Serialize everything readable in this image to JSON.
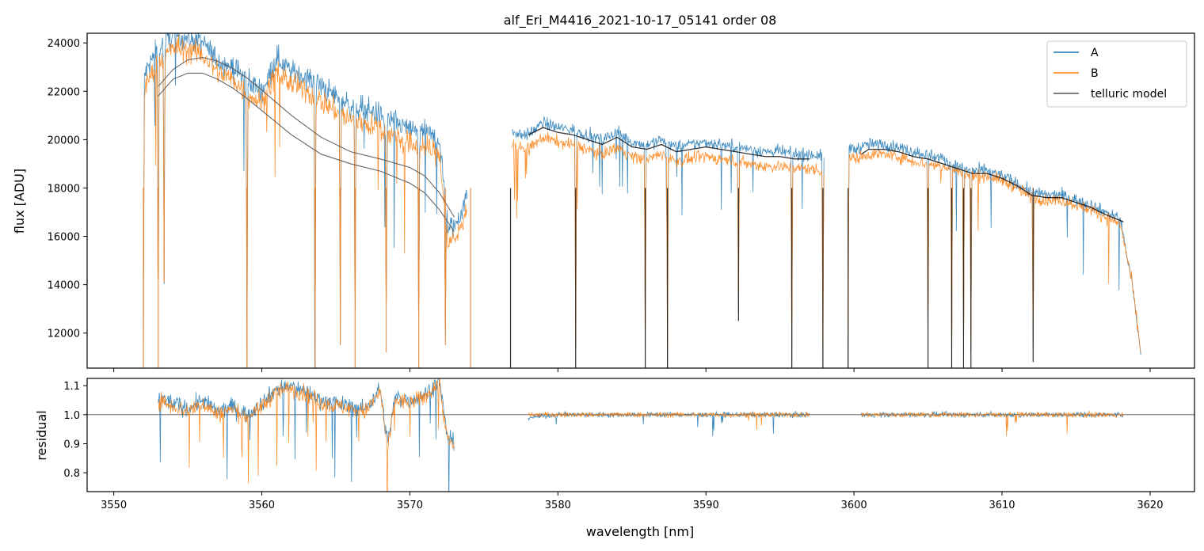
{
  "chart_data": [
    {
      "id": "flux-panel",
      "type": "line",
      "title": "alf_Eri_M4416_2021-10-17_05141  order 08",
      "xlabel": "",
      "ylabel": "flux [ADU]",
      "xlim": [
        3548.2,
        3623
      ],
      "ylim": [
        10550,
        24400
      ],
      "yticks": [
        12000,
        14000,
        16000,
        18000,
        20000,
        22000,
        24000
      ],
      "yticklabels": [
        "12000",
        "14000",
        "16000",
        "18000",
        "20000",
        "22000",
        "24000"
      ],
      "xticks": [
        3550,
        3560,
        3570,
        3580,
        3590,
        3600,
        3610,
        3620
      ],
      "legend": {
        "position": "top-right",
        "entries": [
          "A",
          "B",
          "telluric model"
        ]
      },
      "series": [
        {
          "name": "A",
          "color": "#1f77b4",
          "segments": [
            {
              "x": [
                3552.0,
                3553.0,
                3554.0,
                3555.0,
                3556.0,
                3557.0,
                3558.0,
                3559.0,
                3560.0,
                3561.0,
                3562.0,
                3563.0,
                3564.0,
                3565.0,
                3566.0,
                3567.0,
                3568.0,
                3569.0,
                3570.0,
                3571.0,
                3572.0,
                3572.6,
                3573.2,
                3573.9
              ],
              "y": [
                22600,
                23800,
                24300,
                24200,
                24000,
                23300,
                23000,
                22500,
                22000,
                23400,
                22800,
                22600,
                22200,
                21800,
                21400,
                21300,
                21000,
                20700,
                20400,
                20300,
                20000,
                16200,
                16600,
                17800
              ]
            },
            {
              "x": [
                3576.9,
                3578.0,
                3579.0,
                3580.0,
                3581.0,
                3582.0,
                3583.0,
                3584.0,
                3585.0,
                3586.0,
                3587.0,
                3588.0,
                3589.0,
                3590.0,
                3591.0,
                3592.0,
                3593.0,
                3594.0,
                3595.0,
                3596.0,
                3597.0,
                3598.0
              ],
              "y": [
                20300,
                20200,
                20700,
                20500,
                20400,
                20200,
                20000,
                20300,
                19900,
                19800,
                20000,
                19700,
                19800,
                19900,
                19800,
                19700,
                19600,
                19500,
                19500,
                19400,
                19400,
                19300
              ]
            },
            {
              "x": [
                3599.6,
                3600.0,
                3601.0,
                3602.0,
                3603.0,
                3604.0,
                3605.0,
                3606.0,
                3607.0,
                3608.0,
                3609.0,
                3610.0,
                3611.0,
                3612.0,
                3613.0,
                3614.0,
                3615.0,
                3616.0,
                3617.0,
                3618.0,
                3618.8,
                3619.4
              ],
              "y": [
                19700,
                19600,
                19800,
                19800,
                19700,
                19500,
                19400,
                19200,
                18900,
                18700,
                18700,
                18500,
                18200,
                17800,
                17700,
                17700,
                17500,
                17300,
                17000,
                16700,
                14000,
                11000
              ]
            }
          ]
        },
        {
          "name": "B",
          "color": "#ff7f0e",
          "segments": [
            {
              "x": [
                3552.0,
                3553.0,
                3554.0,
                3555.0,
                3556.0,
                3557.0,
                3558.0,
                3559.0,
                3560.0,
                3561.0,
                3562.0,
                3563.0,
                3564.0,
                3565.0,
                3566.0,
                3567.0,
                3568.0,
                3569.0,
                3570.0,
                3571.0,
                3572.0,
                3572.6,
                3573.2,
                3573.9
              ],
              "y": [
                22000,
                23200,
                23800,
                23700,
                23500,
                22800,
                22500,
                21900,
                21500,
                22800,
                22300,
                22000,
                21600,
                21200,
                20800,
                20700,
                20400,
                20100,
                19800,
                19700,
                19400,
                15700,
                16000,
                17300
              ]
            },
            {
              "x": [
                3576.9,
                3578.0,
                3579.0,
                3580.0,
                3581.0,
                3582.0,
                3583.0,
                3584.0,
                3585.0,
                3586.0,
                3587.0,
                3588.0,
                3589.0,
                3590.0,
                3591.0,
                3592.0,
                3593.0,
                3594.0,
                3595.0,
                3596.0,
                3597.0,
                3598.0
              ],
              "y": [
                19700,
                19600,
                20100,
                19900,
                19800,
                19600,
                19400,
                19700,
                19300,
                19200,
                19400,
                19100,
                19200,
                19300,
                19200,
                19100,
                19000,
                18900,
                18900,
                18800,
                18800,
                18700
              ]
            },
            {
              "x": [
                3599.6,
                3600.0,
                3601.0,
                3602.0,
                3603.0,
                3604.0,
                3605.0,
                3606.0,
                3607.0,
                3608.0,
                3609.0,
                3610.0,
                3611.0,
                3612.0,
                3613.0,
                3614.0,
                3615.0,
                3616.0,
                3617.0,
                3618.0,
                3618.8,
                3619.4
              ],
              "y": [
                19300,
                19200,
                19400,
                19400,
                19300,
                19100,
                19000,
                18900,
                18700,
                18500,
                18500,
                18300,
                18000,
                17600,
                17500,
                17500,
                17300,
                17100,
                16800,
                16500,
                14000,
                11000
              ]
            }
          ]
        },
        {
          "name": "telluric model",
          "color": "#555555",
          "segments": [
            {
              "x": [
                3553.0,
                3554.0,
                3555.0,
                3556.0,
                3557.0,
                3558.0,
                3559.0,
                3560.0,
                3562.0,
                3564.0,
                3566.0,
                3568.0,
                3570.0,
                3571.0,
                3572.0,
                3573.0
              ],
              "y": [
                22200,
                22900,
                23300,
                23400,
                23250,
                22950,
                22550,
                22050,
                21000,
                20100,
                19500,
                19200,
                18850,
                18500,
                17800,
                16800
              ]
            },
            {
              "x": [
                3553.0,
                3554.0,
                3555.0,
                3556.0,
                3557.0,
                3558.0,
                3559.0,
                3560.0,
                3562.0,
                3564.0,
                3566.0,
                3568.0,
                3570.0,
                3571.0,
                3572.0,
                3573.0
              ],
              "y": [
                21800,
                22500,
                22750,
                22750,
                22500,
                22150,
                21700,
                21200,
                20200,
                19400,
                19000,
                18700,
                18200,
                17800,
                17100,
                16200
              ]
            },
            {
              "x": [
                3578.0,
                3579.0,
                3580.0,
                3581.0,
                3582.0,
                3583.0,
                3584.0,
                3585.0,
                3586.0,
                3587.0,
                3588.0,
                3589.0,
                3590.0,
                3591.0,
                3592.0,
                3593.0,
                3594.0,
                3595.0,
                3596.0,
                3597.0
              ],
              "y": [
                20200,
                20500,
                20300,
                20200,
                20000,
                19800,
                20100,
                19700,
                19600,
                19800,
                19500,
                19600,
                19700,
                19600,
                19500,
                19400,
                19300,
                19300,
                19200,
                19200
              ]
            },
            {
              "x": [
                3600.5,
                3601.0,
                3602.0,
                3603.0,
                3604.0,
                3605.0,
                3606.0,
                3607.0,
                3608.0,
                3609.0,
                3610.0,
                3611.0,
                3612.0,
                3613.0,
                3614.0,
                3615.0,
                3616.0,
                3617.0,
                3618.2
              ],
              "y": [
                19400,
                19600,
                19600,
                19500,
                19300,
                19200,
                19000,
                18800,
                18600,
                18600,
                18400,
                18100,
                17700,
                17600,
                17600,
                17400,
                17200,
                16900,
                16600
              ]
            }
          ]
        }
      ],
      "absorption_lines": [
        3552.0,
        3553.0,
        3553.4,
        3559.0,
        3563.6,
        3565.3,
        3566.3,
        3568.4,
        3570.6,
        3572.4,
        3574.1,
        3576.8,
        3581.2,
        3585.9,
        3587.4,
        3592.2,
        3595.8,
        3597.9,
        3599.6,
        3605.0,
        3606.6,
        3607.4,
        3607.9,
        3612.1
      ],
      "absorption_depths": [
        10550,
        10550,
        14100,
        10550,
        10550,
        11500,
        10550,
        11200,
        10550,
        11500,
        10550,
        10550,
        10550,
        10550,
        10550,
        12500,
        10550,
        10550,
        10550,
        10550,
        10550,
        10550,
        10550,
        10800
      ]
    },
    {
      "id": "residual-panel",
      "type": "line",
      "title": "",
      "xlabel": "wavelength [nm]",
      "ylabel": "residual",
      "xlim": [
        3548.2,
        3623
      ],
      "ylim": [
        0.735,
        1.125
      ],
      "yticks": [
        0.8,
        0.9,
        1.0,
        1.1
      ],
      "yticklabels": [
        "0.8",
        "0.9",
        "1.0",
        "1.1"
      ],
      "xticks": [
        3550,
        3560,
        3570,
        3580,
        3590,
        3600,
        3610,
        3620
      ],
      "xticklabels": [
        "3550",
        "3560",
        "3570",
        "3580",
        "3590",
        "3600",
        "3610",
        "3620"
      ],
      "reference_line": 1.0,
      "series": [
        {
          "name": "A",
          "color": "#1f77b4",
          "segments": [
            {
              "x": [
                3553.0,
                3554.0,
                3555.0,
                3556.0,
                3557.0,
                3558.0,
                3559.0,
                3560.0,
                3561.0,
                3562.0,
                3563.0,
                3564.0,
                3565.0,
                3566.0,
                3567.0,
                3568.0,
                3568.5,
                3569.0,
                3570.0,
                3571.0,
                3572.0,
                3572.5,
                3573.0
              ],
              "y": [
                1.06,
                1.04,
                1.02,
                1.05,
                1.01,
                1.03,
                1.0,
                1.04,
                1.09,
                1.1,
                1.08,
                1.05,
                1.04,
                1.03,
                1.02,
                1.09,
                0.9,
                1.06,
                1.05,
                1.07,
                1.12,
                0.93,
                0.9
              ]
            },
            {
              "x": [
                3578.0,
                3580.0,
                3582.0,
                3584.0,
                3586.0,
                3588.0,
                3590.0,
                3592.0,
                3594.0,
                3596.0,
                3597.0
              ],
              "y": [
                0.99,
                1.0,
                1.0,
                1.0,
                1.0,
                1.0,
                1.0,
                1.0,
                1.0,
                1.0,
                1.0
              ]
            },
            {
              "x": [
                3600.5,
                3602.0,
                3604.0,
                3606.0,
                3608.0,
                3610.0,
                3612.0,
                3614.0,
                3616.0,
                3618.2
              ],
              "y": [
                1.0,
                1.0,
                1.0,
                1.0,
                1.0,
                1.0,
                1.0,
                1.0,
                1.0,
                1.0
              ]
            }
          ]
        },
        {
          "name": "B",
          "color": "#ff7f0e",
          "segments": [
            {
              "x": [
                3553.0,
                3554.0,
                3555.0,
                3556.0,
                3557.0,
                3558.0,
                3559.0,
                3560.0,
                3561.0,
                3562.0,
                3563.0,
                3564.0,
                3565.0,
                3566.0,
                3567.0,
                3568.0,
                3568.5,
                3569.0,
                3570.0,
                3571.0,
                3572.0,
                3572.5,
                3573.0
              ],
              "y": [
                1.05,
                1.03,
                1.01,
                1.04,
                1.0,
                1.02,
                0.99,
                1.03,
                1.08,
                1.09,
                1.07,
                1.04,
                1.03,
                1.02,
                1.01,
                1.08,
                0.88,
                1.05,
                1.04,
                1.06,
                1.11,
                0.92,
                0.89
              ]
            },
            {
              "x": [
                3578.0,
                3580.0,
                3582.0,
                3584.0,
                3586.0,
                3588.0,
                3590.0,
                3592.0,
                3594.0,
                3596.0,
                3597.0
              ],
              "y": [
                1.0,
                1.0,
                1.0,
                1.0,
                1.0,
                1.0,
                1.0,
                1.0,
                1.0,
                1.0,
                1.0
              ]
            },
            {
              "x": [
                3600.5,
                3602.0,
                3604.0,
                3606.0,
                3608.0,
                3610.0,
                3612.0,
                3614.0,
                3616.0,
                3618.2
              ],
              "y": [
                1.0,
                1.0,
                1.0,
                1.0,
                1.0,
                1.0,
                1.0,
                1.0,
                1.0,
                1.0
              ]
            }
          ]
        }
      ]
    }
  ]
}
